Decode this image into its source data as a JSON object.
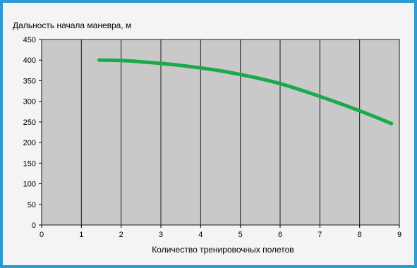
{
  "chart_data": {
    "type": "line",
    "title": "",
    "xlabel": "Количество тренировочных полетов",
    "ylabel": "Дальность начала маневра, м",
    "xlim": [
      0,
      9
    ],
    "ylim": [
      0,
      450
    ],
    "xticks": [
      0,
      1,
      2,
      3,
      4,
      5,
      6,
      7,
      8,
      9
    ],
    "yticks": [
      0,
      50,
      100,
      150,
      200,
      250,
      300,
      350,
      400,
      450
    ],
    "grid": "vertical",
    "legend": "none",
    "series": [
      {
        "color": "#1aaa4a",
        "x": [
          1.45,
          2,
          2.5,
          3,
          3.5,
          4,
          4.5,
          5,
          5.5,
          6,
          6.5,
          7,
          7.5,
          8,
          8.5,
          8.8
        ],
        "y": [
          400,
          399,
          396,
          392,
          387,
          381,
          374,
          365,
          355,
          343,
          328,
          312,
          295,
          277,
          258,
          246
        ]
      }
    ],
    "colors": {
      "plot_background": "#c9c9c9",
      "gridline": "#1a1a1a",
      "frame": "#2e9ad4"
    }
  }
}
